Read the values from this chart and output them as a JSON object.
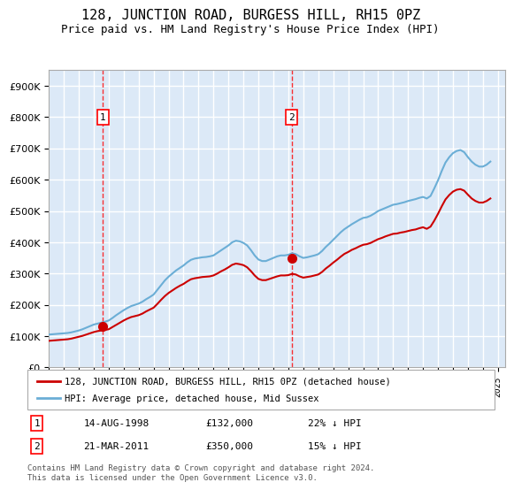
{
  "title": "128, JUNCTION ROAD, BURGESS HILL, RH15 0PZ",
  "subtitle": "Price paid vs. HM Land Registry's House Price Index (HPI)",
  "ylabel_ticks": [
    "£0",
    "£100K",
    "£200K",
    "£300K",
    "£400K",
    "£500K",
    "£600K",
    "£700K",
    "£800K",
    "£900K"
  ],
  "ytick_values": [
    0,
    100000,
    200000,
    300000,
    400000,
    500000,
    600000,
    700000,
    800000,
    900000
  ],
  "ylim": [
    0,
    950000
  ],
  "xlim_start": 1995.0,
  "xlim_end": 2025.5,
  "bg_color": "#dce9f7",
  "plot_bg": "#dce9f7",
  "grid_color": "#ffffff",
  "hpi_color": "#6baed6",
  "price_color": "#cc0000",
  "sale1_date": 1998.617,
  "sale1_price": 132000,
  "sale2_date": 2011.22,
  "sale2_price": 350000,
  "legend_label_price": "128, JUNCTION ROAD, BURGESS HILL, RH15 0PZ (detached house)",
  "legend_label_hpi": "HPI: Average price, detached house, Mid Sussex",
  "annotation1": "1",
  "annotation2": "2",
  "ann1_date_str": "14-AUG-1998",
  "ann1_price_str": "£132,000",
  "ann1_hpi_str": "22% ↓ HPI",
  "ann2_date_str": "21-MAR-2011",
  "ann2_price_str": "£350,000",
  "ann2_hpi_str": "15% ↓ HPI",
  "footer": "Contains HM Land Registry data © Crown copyright and database right 2024.\nThis data is licensed under the Open Government Licence v3.0.",
  "hpi_x": [
    1995.0,
    1995.25,
    1995.5,
    1995.75,
    1996.0,
    1996.25,
    1996.5,
    1996.75,
    1997.0,
    1997.25,
    1997.5,
    1997.75,
    1998.0,
    1998.25,
    1998.5,
    1998.75,
    1999.0,
    1999.25,
    1999.5,
    1999.75,
    2000.0,
    2000.25,
    2000.5,
    2000.75,
    2001.0,
    2001.25,
    2001.5,
    2001.75,
    2002.0,
    2002.25,
    2002.5,
    2002.75,
    2003.0,
    2003.25,
    2003.5,
    2003.75,
    2004.0,
    2004.25,
    2004.5,
    2004.75,
    2005.0,
    2005.25,
    2005.5,
    2005.75,
    2006.0,
    2006.25,
    2006.5,
    2006.75,
    2007.0,
    2007.25,
    2007.5,
    2007.75,
    2008.0,
    2008.25,
    2008.5,
    2008.75,
    2009.0,
    2009.25,
    2009.5,
    2009.75,
    2010.0,
    2010.25,
    2010.5,
    2010.75,
    2011.0,
    2011.25,
    2011.5,
    2011.75,
    2012.0,
    2012.25,
    2012.5,
    2012.75,
    2013.0,
    2013.25,
    2013.5,
    2013.75,
    2014.0,
    2014.25,
    2014.5,
    2014.75,
    2015.0,
    2015.25,
    2015.5,
    2015.75,
    2016.0,
    2016.25,
    2016.5,
    2016.75,
    2017.0,
    2017.25,
    2017.5,
    2017.75,
    2018.0,
    2018.25,
    2018.5,
    2018.75,
    2019.0,
    2019.25,
    2019.5,
    2019.75,
    2020.0,
    2020.25,
    2020.5,
    2020.75,
    2021.0,
    2021.25,
    2021.5,
    2021.75,
    2022.0,
    2022.25,
    2022.5,
    2022.75,
    2023.0,
    2023.25,
    2023.5,
    2023.75,
    2024.0,
    2024.25,
    2024.5
  ],
  "hpi_y": [
    105000,
    106000,
    107000,
    108000,
    109000,
    110000,
    112000,
    115000,
    118000,
    122000,
    127000,
    132000,
    137000,
    140000,
    143000,
    146000,
    150000,
    158000,
    167000,
    175000,
    183000,
    190000,
    196000,
    200000,
    204000,
    210000,
    218000,
    225000,
    233000,
    248000,
    263000,
    278000,
    290000,
    300000,
    310000,
    318000,
    326000,
    336000,
    344000,
    348000,
    350000,
    352000,
    353000,
    355000,
    358000,
    366000,
    374000,
    382000,
    390000,
    400000,
    405000,
    403000,
    398000,
    390000,
    375000,
    358000,
    345000,
    340000,
    340000,
    345000,
    350000,
    355000,
    358000,
    358000,
    360000,
    365000,
    362000,
    355000,
    350000,
    352000,
    355000,
    358000,
    362000,
    372000,
    385000,
    396000,
    408000,
    420000,
    432000,
    442000,
    450000,
    458000,
    465000,
    472000,
    478000,
    480000,
    485000,
    492000,
    500000,
    505000,
    510000,
    515000,
    520000,
    522000,
    525000,
    528000,
    532000,
    535000,
    538000,
    542000,
    545000,
    540000,
    548000,
    572000,
    598000,
    628000,
    655000,
    672000,
    685000,
    692000,
    695000,
    688000,
    672000,
    658000,
    648000,
    642000,
    642000,
    648000,
    658000
  ],
  "price_x": [
    1995.0,
    1995.25,
    1995.5,
    1995.75,
    1996.0,
    1996.25,
    1996.5,
    1996.75,
    1997.0,
    1997.25,
    1997.5,
    1997.75,
    1998.0,
    1998.25,
    1998.5,
    1998.75,
    1999.0,
    1999.25,
    1999.5,
    1999.75,
    2000.0,
    2000.25,
    2000.5,
    2000.75,
    2001.0,
    2001.25,
    2001.5,
    2001.75,
    2002.0,
    2002.25,
    2002.5,
    2002.75,
    2003.0,
    2003.25,
    2003.5,
    2003.75,
    2004.0,
    2004.25,
    2004.5,
    2004.75,
    2005.0,
    2005.25,
    2005.5,
    2005.75,
    2006.0,
    2006.25,
    2006.5,
    2006.75,
    2007.0,
    2007.25,
    2007.5,
    2007.75,
    2008.0,
    2008.25,
    2008.5,
    2008.75,
    2009.0,
    2009.25,
    2009.5,
    2009.75,
    2010.0,
    2010.25,
    2010.5,
    2010.75,
    2011.0,
    2011.25,
    2011.5,
    2011.75,
    2012.0,
    2012.25,
    2012.5,
    2012.75,
    2013.0,
    2013.25,
    2013.5,
    2013.75,
    2014.0,
    2014.25,
    2014.5,
    2014.75,
    2015.0,
    2015.25,
    2015.5,
    2015.75,
    2016.0,
    2016.25,
    2016.5,
    2016.75,
    2017.0,
    2017.25,
    2017.5,
    2017.75,
    2018.0,
    2018.25,
    2018.5,
    2018.75,
    2019.0,
    2019.25,
    2019.5,
    2019.75,
    2020.0,
    2020.25,
    2020.5,
    2020.75,
    2021.0,
    2021.25,
    2021.5,
    2021.75,
    2022.0,
    2022.25,
    2022.5,
    2022.75,
    2023.0,
    2023.25,
    2023.5,
    2023.75,
    2024.0,
    2024.25,
    2024.5
  ],
  "price_y": [
    85000,
    86000,
    87000,
    88000,
    89000,
    90000,
    92000,
    95000,
    98000,
    101000,
    105000,
    109000,
    113000,
    116000,
    118000,
    120000,
    122000,
    129000,
    136000,
    143000,
    150000,
    156000,
    161000,
    164000,
    167000,
    172000,
    179000,
    185000,
    191000,
    203000,
    216000,
    228000,
    238000,
    246000,
    254000,
    261000,
    267000,
    275000,
    282000,
    285000,
    287000,
    289000,
    290000,
    291000,
    294000,
    300000,
    307000,
    313000,
    320000,
    328000,
    332000,
    330000,
    327000,
    320000,
    308000,
    294000,
    283000,
    279000,
    279000,
    283000,
    287000,
    291000,
    294000,
    294000,
    295000,
    299000,
    297000,
    291000,
    287000,
    289000,
    291000,
    294000,
    297000,
    305000,
    316000,
    325000,
    335000,
    344000,
    354000,
    363000,
    369000,
    376000,
    381000,
    387000,
    392000,
    394000,
    398000,
    404000,
    410000,
    414000,
    419000,
    423000,
    427000,
    428000,
    431000,
    433000,
    436000,
    439000,
    441000,
    445000,
    448000,
    443000,
    450000,
    469000,
    491000,
    515000,
    537000,
    551000,
    562000,
    568000,
    570000,
    565000,
    552000,
    540000,
    532000,
    527000,
    527000,
    532000,
    540000
  ]
}
